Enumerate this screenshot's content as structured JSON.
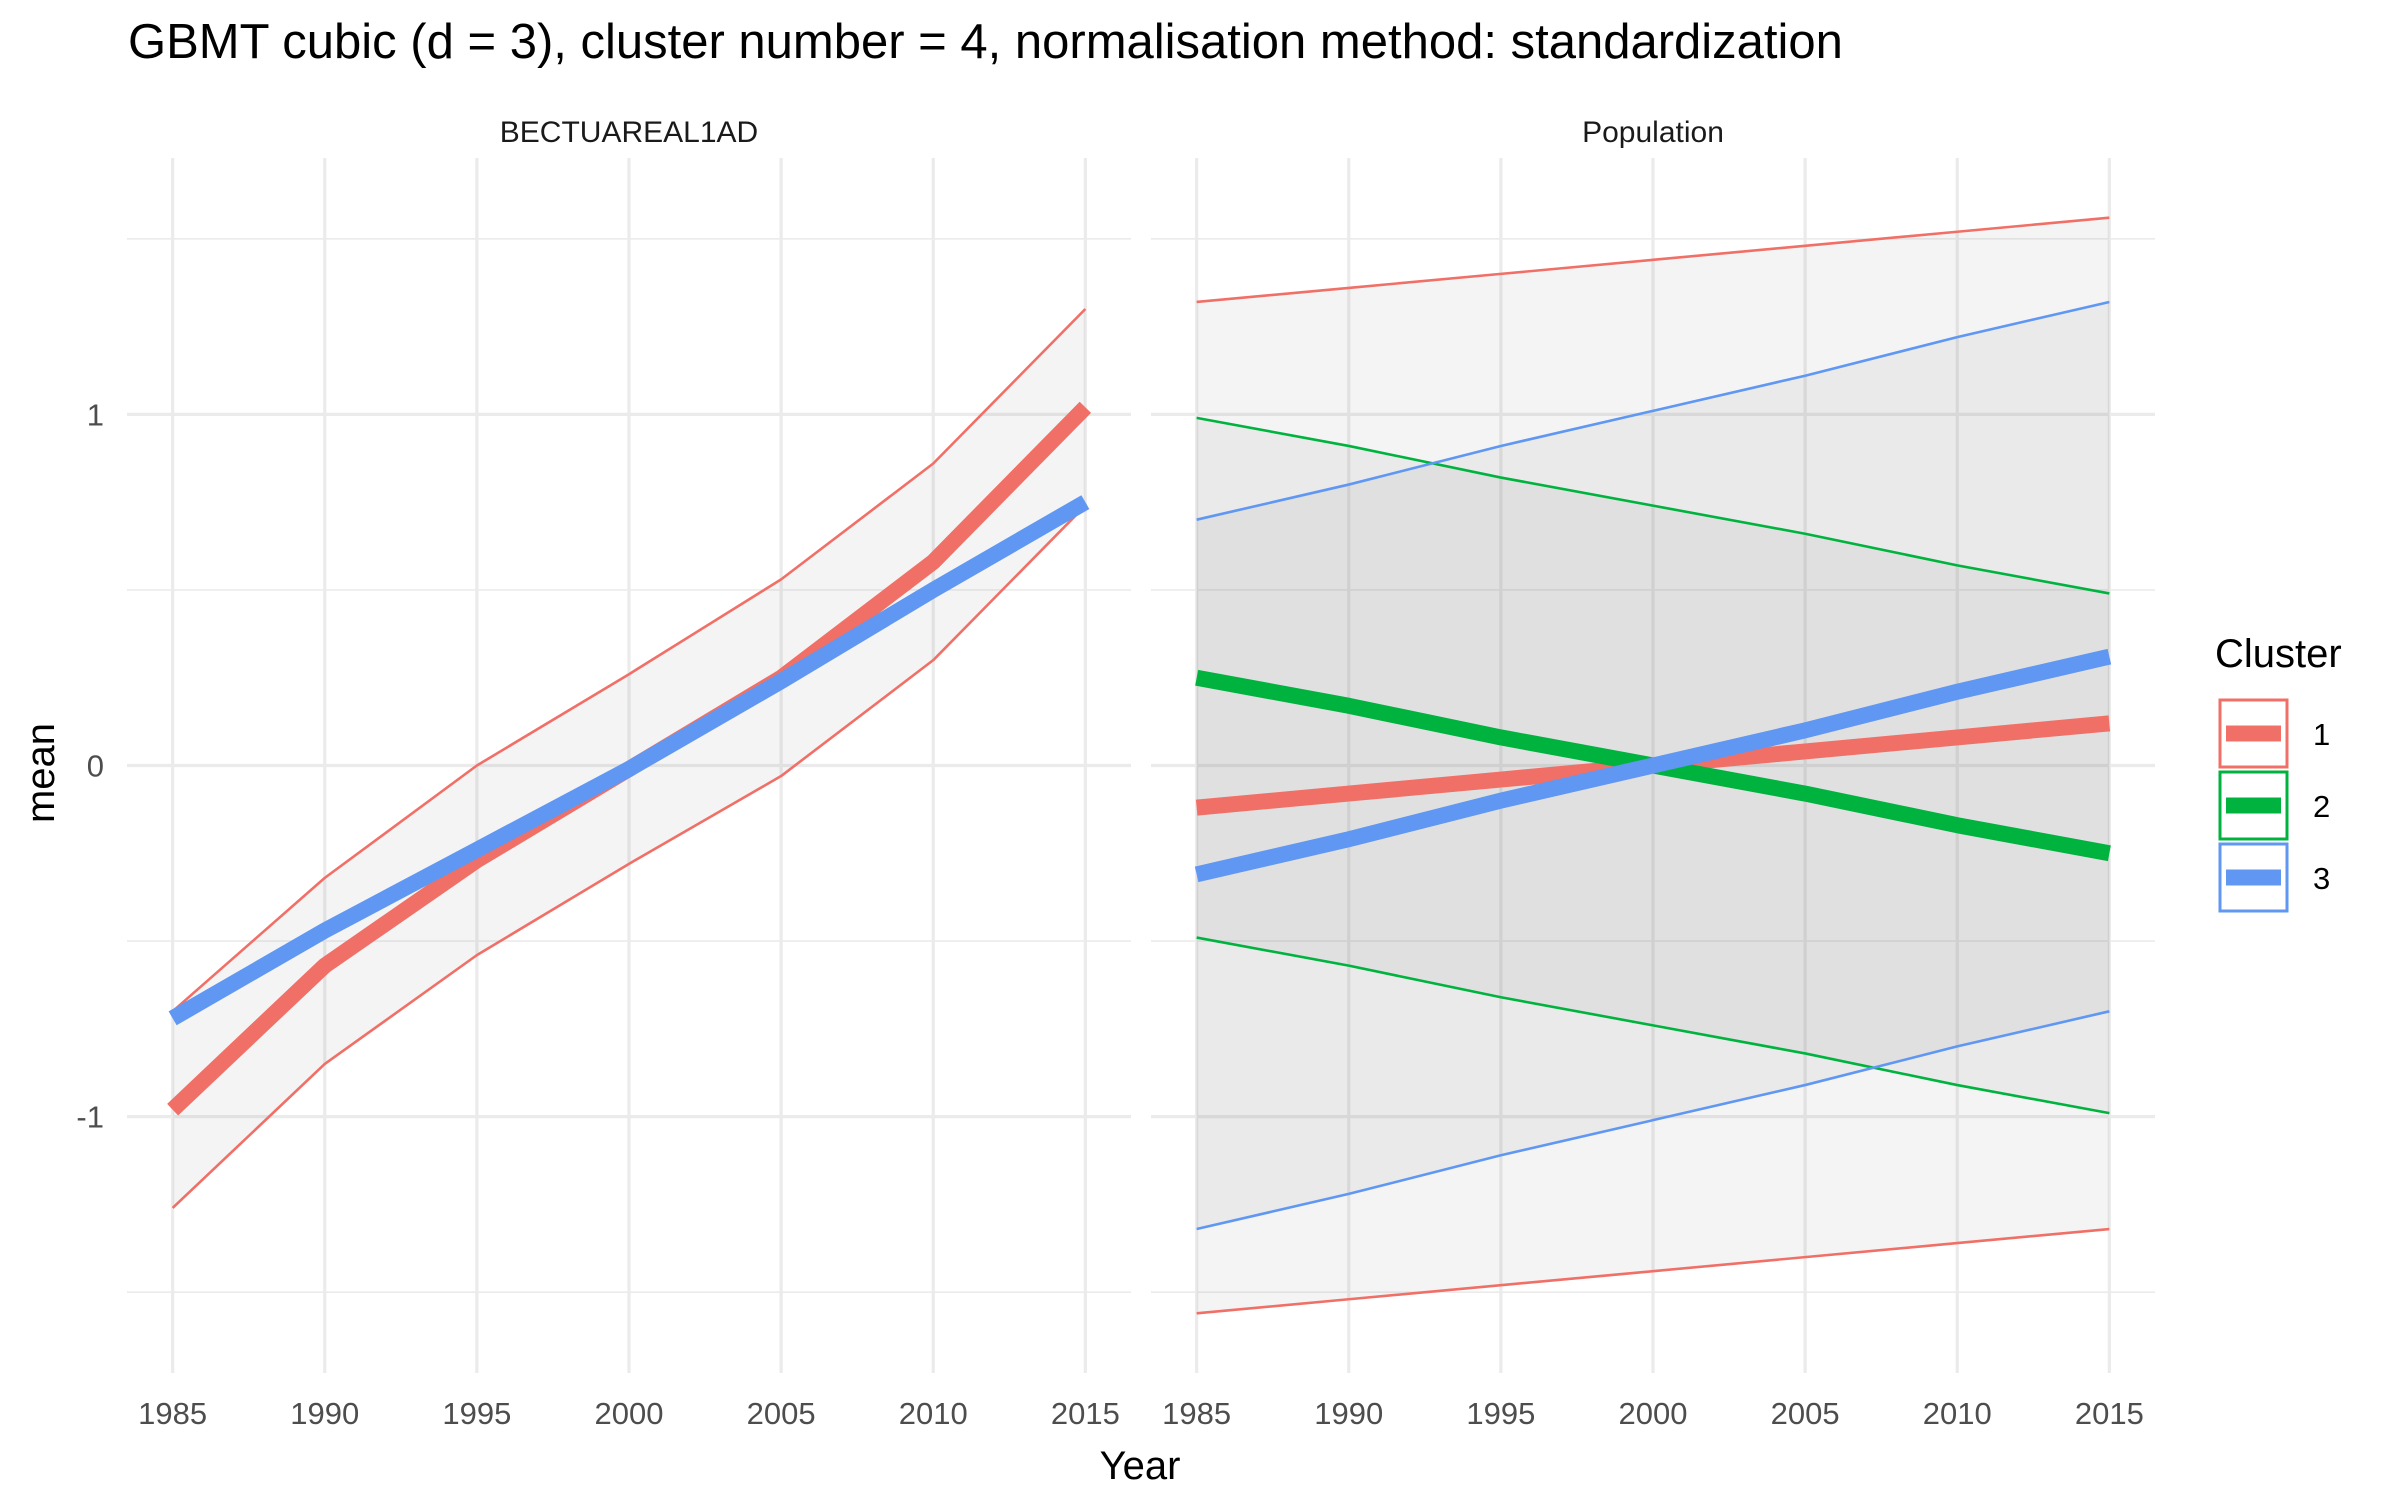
{
  "chart_data": {
    "type": "line",
    "title": "GBMT cubic (d = 3), cluster number = 4, normalisation method: standardization",
    "xlabel": "Year",
    "ylabel": "mean",
    "xlim": [
      1983.5,
      2016.5
    ],
    "ylim": [
      -1.73,
      1.73
    ],
    "x_ticks": [
      1985,
      1990,
      1995,
      2000,
      2005,
      2010,
      2015
    ],
    "y_ticks": [
      -1,
      0,
      1
    ],
    "y_tick_labels": [
      "-1",
      "0",
      "1"
    ],
    "grid": true,
    "legend": {
      "title": "Cluster",
      "position": "right",
      "entries": [
        {
          "label": "1",
          "color": "#F07067"
        },
        {
          "label": "2",
          "color": "#00B33F"
        },
        {
          "label": "3",
          "color": "#5F97F2"
        }
      ]
    },
    "panels": [
      {
        "title": "BECTUAREAL1AD",
        "x": [
          1985,
          1990,
          1995,
          2000,
          2005,
          2010,
          2015
        ],
        "series": [
          {
            "name": "1",
            "values": [
              -0.98,
              -0.57,
              -0.27,
              -0.01,
              0.25,
              0.58,
              1.02
            ]
          },
          {
            "name": "3",
            "values": [
              -0.72,
              -0.47,
              -0.24,
              -0.01,
              0.24,
              0.5,
              0.75
            ]
          }
        ],
        "bands": [
          {
            "name": "1",
            "upper": [
              -0.7,
              -0.32,
              0.0,
              0.26,
              0.53,
              0.86,
              1.3
            ],
            "lower": [
              -1.26,
              -0.85,
              -0.54,
              -0.28,
              -0.03,
              0.3,
              0.74
            ],
            "shaded": true
          }
        ]
      },
      {
        "title": "Population",
        "x": [
          1985,
          1990,
          1995,
          2000,
          2005,
          2010,
          2015
        ],
        "series": [
          {
            "name": "1",
            "values": [
              -0.12,
              -0.08,
              -0.04,
              0.0,
              0.04,
              0.08,
              0.12
            ]
          },
          {
            "name": "2",
            "values": [
              0.25,
              0.17,
              0.08,
              0.0,
              -0.08,
              -0.17,
              -0.25
            ]
          },
          {
            "name": "3",
            "values": [
              -0.31,
              -0.21,
              -0.1,
              0.0,
              0.1,
              0.21,
              0.31
            ]
          }
        ],
        "bands": [
          {
            "name": "1",
            "upper": [
              1.32,
              1.36,
              1.4,
              1.44,
              1.48,
              1.52,
              1.56
            ],
            "lower": [
              -1.56,
              -1.52,
              -1.48,
              -1.44,
              -1.4,
              -1.36,
              -1.32
            ],
            "shaded": true
          },
          {
            "name": "2",
            "upper": [
              0.99,
              0.91,
              0.82,
              0.74,
              0.66,
              0.57,
              0.49
            ],
            "lower": [
              -0.49,
              -0.57,
              -0.66,
              -0.74,
              -0.82,
              -0.91,
              -0.99
            ],
            "shaded": true
          },
          {
            "name": "3",
            "upper": [
              0.7,
              0.8,
              0.91,
              1.01,
              1.11,
              1.22,
              1.32
            ],
            "lower": [
              -1.32,
              -1.22,
              -1.11,
              -1.01,
              -0.91,
              -0.8,
              -0.7
            ],
            "shaded": true
          }
        ]
      }
    ]
  }
}
